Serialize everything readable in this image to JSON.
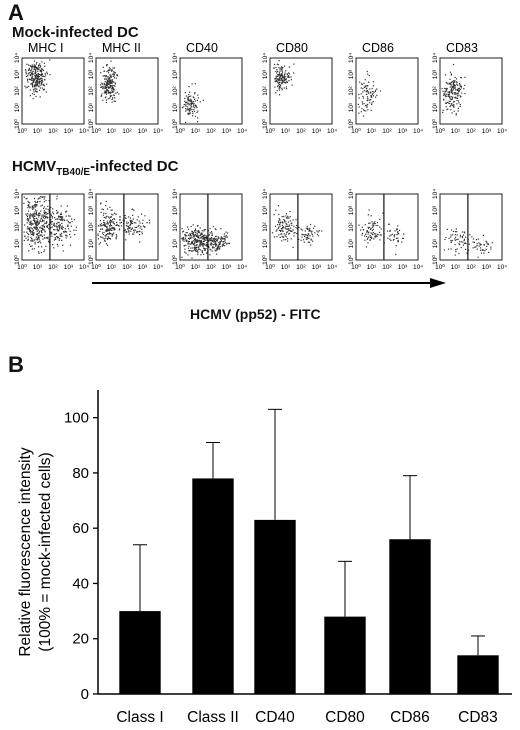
{
  "panelA": {
    "letter": "A",
    "row1_title": "Mock-infected DC",
    "row2_title_main": "HCMV",
    "row2_title_sub": "TB40/E",
    "row2_title_tail": "-infected DC",
    "markers": [
      "MHC I",
      "MHC II",
      "CD40",
      "CD80",
      "CD86",
      "CD83"
    ],
    "axis_caption": "HCMV (pp52) - FITC",
    "tick_labels": [
      "10⁰",
      "10¹",
      "10²",
      "10³",
      "10⁴"
    ]
  },
  "panelB": {
    "letter": "B"
  },
  "chart_data": {
    "type": "bar",
    "categories": [
      "Class I",
      "Class II",
      "CD40",
      "CD80",
      "CD86",
      "CD83"
    ],
    "series": [
      {
        "values": [
          30,
          78,
          63,
          28,
          56,
          14
        ],
        "error_upper": [
          54,
          91,
          103,
          48,
          79,
          21
        ]
      }
    ],
    "ylabel_line1": "Relative fluorescence intensity",
    "ylabel_line2": "(100% = mock-infected cells)",
    "xlabel": "",
    "ylim": [
      0,
      110
    ],
    "yticks": [
      0,
      20,
      40,
      60,
      80,
      100
    ],
    "bar_color": "#000000",
    "grid": false
  }
}
